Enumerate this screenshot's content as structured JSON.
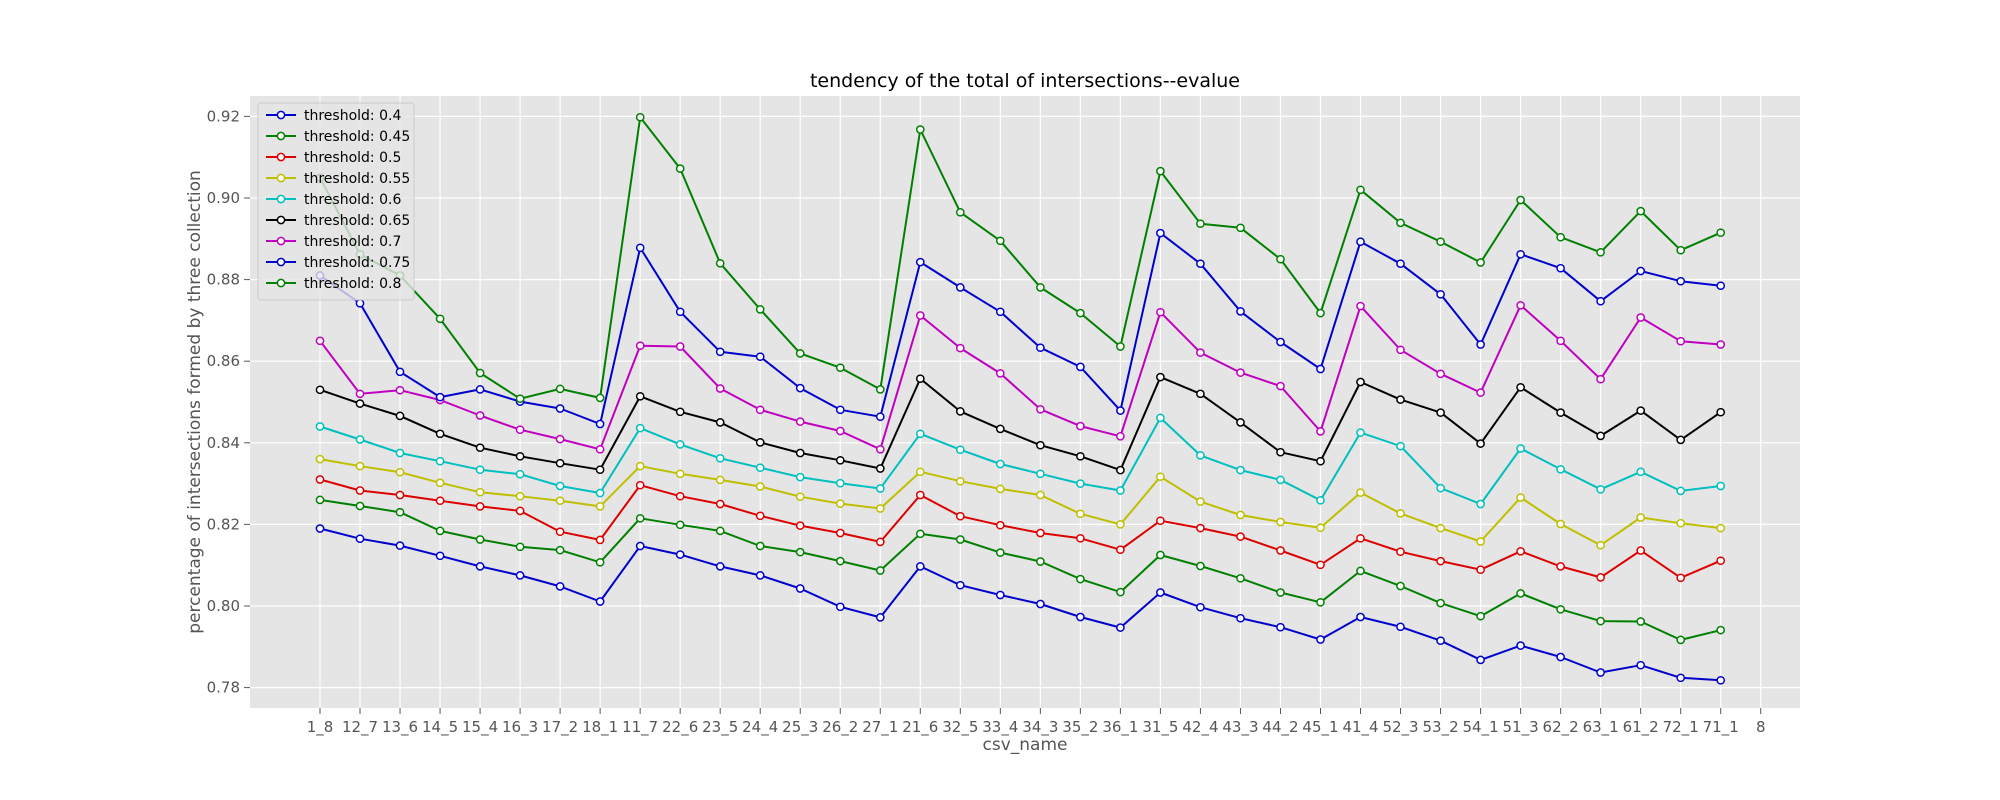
{
  "chart_data": {
    "type": "line",
    "title": "tendency of the total of intersections--evalue",
    "xlabel": "csv_name",
    "ylabel": "percentage of intersections formed by three collection",
    "ylim": [
      0.775,
      0.925
    ],
    "yticks": [
      "0.78",
      "0.80",
      "0.82",
      "0.84",
      "0.86",
      "0.88",
      "0.90",
      "0.92"
    ],
    "grid": true,
    "legend_position": "top-left",
    "categories": [
      "1_8",
      "12_7",
      "13_6",
      "14_5",
      "15_4",
      "16_3",
      "17_2",
      "18_1",
      "11_7",
      "22_6",
      "23_5",
      "24_4",
      "25_3",
      "26_2",
      "27_1",
      "21_6",
      "32_5",
      "33_4",
      "34_3",
      "35_2",
      "36_1",
      "31_5",
      "42_4",
      "43_3",
      "44_2",
      "45_1",
      "41_4",
      "52_3",
      "53_2",
      "54_1",
      "51_3",
      "62_2",
      "63_1",
      "61_2",
      "72_1",
      "71_1",
      "8"
    ],
    "series": [
      {
        "name": "threshold: 0.4",
        "color": "#0000cc",
        "values": [
          0.819,
          0.8165,
          0.8148,
          0.8123,
          0.8097,
          0.8075,
          0.8048,
          0.8011,
          0.8147,
          0.8126,
          0.8097,
          0.8075,
          0.8043,
          0.7998,
          0.7972,
          0.8097,
          0.8051,
          0.8027,
          0.8005,
          0.7973,
          0.7947,
          0.8033,
          0.7997,
          0.797,
          0.7948,
          0.7918,
          0.7973,
          0.7949,
          0.7915,
          0.7868,
          0.7903,
          0.7875,
          0.7837,
          0.7855,
          0.7824,
          0.7818,
          null
        ]
      },
      {
        "name": "threshold: 0.45",
        "color": "#008000",
        "values": [
          0.826,
          0.8245,
          0.823,
          0.8184,
          0.8163,
          0.8145,
          0.8137,
          0.8107,
          0.8215,
          0.8199,
          0.8184,
          0.8147,
          0.8132,
          0.811,
          0.8087,
          0.8177,
          0.8163,
          0.8131,
          0.8109,
          0.8066,
          0.8034,
          0.8125,
          0.8098,
          0.8068,
          0.8033,
          0.8009,
          0.8086,
          0.8049,
          0.8007,
          0.7975,
          0.8031,
          0.7992,
          0.7963,
          0.7962,
          0.7917,
          0.7941,
          null
        ]
      },
      {
        "name": "threshold: 0.5",
        "color": "#dd0000",
        "values": [
          0.831,
          0.8283,
          0.8272,
          0.8258,
          0.8244,
          0.8233,
          0.8182,
          0.8162,
          0.8296,
          0.8269,
          0.825,
          0.8221,
          0.8197,
          0.8179,
          0.8157,
          0.8272,
          0.822,
          0.8198,
          0.8179,
          0.8166,
          0.8138,
          0.8209,
          0.8191,
          0.817,
          0.8136,
          0.8101,
          0.8166,
          0.8133,
          0.811,
          0.8089,
          0.8134,
          0.8097,
          0.807,
          0.8136,
          0.8069,
          0.8111,
          null
        ]
      },
      {
        "name": "threshold: 0.55",
        "color": "#bfbf00",
        "values": [
          0.836,
          0.8343,
          0.8328,
          0.8302,
          0.8279,
          0.8269,
          0.8258,
          0.8244,
          0.8343,
          0.8324,
          0.8309,
          0.8293,
          0.8268,
          0.8251,
          0.8239,
          0.8329,
          0.8306,
          0.8287,
          0.8272,
          0.8226,
          0.82,
          0.8317,
          0.8256,
          0.8223,
          0.8206,
          0.8192,
          0.8278,
          0.8227,
          0.8191,
          0.8158,
          0.8266,
          0.8201,
          0.8149,
          0.8217,
          0.8203,
          0.8191,
          null
        ]
      },
      {
        "name": "threshold: 0.6",
        "color": "#00bfbf",
        "values": [
          0.844,
          0.8408,
          0.8375,
          0.8355,
          0.8334,
          0.8323,
          0.8294,
          0.8277,
          0.8436,
          0.8396,
          0.8362,
          0.8339,
          0.8316,
          0.8301,
          0.8288,
          0.8422,
          0.8383,
          0.8348,
          0.8324,
          0.83,
          0.8283,
          0.8461,
          0.8369,
          0.8333,
          0.8309,
          0.8259,
          0.8425,
          0.8392,
          0.8289,
          0.825,
          0.8386,
          0.8335,
          0.8286,
          0.8329,
          0.8282,
          0.8294,
          null
        ]
      },
      {
        "name": "threshold: 0.65",
        "color": "#000000",
        "values": [
          0.853,
          0.8496,
          0.8466,
          0.8422,
          0.8388,
          0.8367,
          0.835,
          0.8334,
          0.8514,
          0.8476,
          0.845,
          0.8401,
          0.8375,
          0.8357,
          0.8337,
          0.8557,
          0.8477,
          0.8434,
          0.8394,
          0.8367,
          0.8333,
          0.8561,
          0.852,
          0.845,
          0.8377,
          0.8355,
          0.8549,
          0.8506,
          0.8474,
          0.8398,
          0.8536,
          0.8474,
          0.8417,
          0.8479,
          0.8407,
          0.8475,
          null
        ]
      },
      {
        "name": "threshold: 0.7",
        "color": "#bf00bf",
        "values": [
          0.865,
          0.852,
          0.8529,
          0.8505,
          0.8467,
          0.8432,
          0.8409,
          0.8384,
          0.8638,
          0.8636,
          0.8533,
          0.8481,
          0.8452,
          0.8429,
          0.8384,
          0.8712,
          0.8632,
          0.857,
          0.8482,
          0.8441,
          0.8416,
          0.872,
          0.8621,
          0.8572,
          0.8539,
          0.8428,
          0.8735,
          0.8628,
          0.8569,
          0.8523,
          0.8737,
          0.865,
          0.8556,
          0.8707,
          0.8649,
          0.8641,
          null
        ]
      },
      {
        "name": "threshold: 0.75",
        "color": "#0000cc",
        "values": [
          0.881,
          0.8742,
          0.8574,
          0.8512,
          0.8531,
          0.8501,
          0.8484,
          0.8446,
          0.8878,
          0.8721,
          0.8623,
          0.8611,
          0.8534,
          0.8481,
          0.8464,
          0.8843,
          0.8781,
          0.8721,
          0.8633,
          0.8586,
          0.8479,
          0.8914,
          0.8839,
          0.8722,
          0.8647,
          0.8581,
          0.8893,
          0.8839,
          0.8764,
          0.8641,
          0.8862,
          0.8828,
          0.8747,
          0.8821,
          0.8796,
          0.8785,
          null
        ]
      },
      {
        "name": "threshold: 0.8",
        "color": "#008000",
        "values": [
          0.905,
          0.8862,
          0.881,
          0.8704,
          0.8571,
          0.8508,
          0.8532,
          0.851,
          0.9198,
          0.9072,
          0.884,
          0.8727,
          0.8619,
          0.8584,
          0.8531,
          0.9168,
          0.8965,
          0.8895,
          0.8781,
          0.8718,
          0.8636,
          0.9066,
          0.8937,
          0.8927,
          0.885,
          0.8718,
          0.902,
          0.8939,
          0.8893,
          0.8842,
          0.8995,
          0.8904,
          0.8867,
          0.8968,
          0.8872,
          0.8915,
          null
        ]
      }
    ]
  }
}
